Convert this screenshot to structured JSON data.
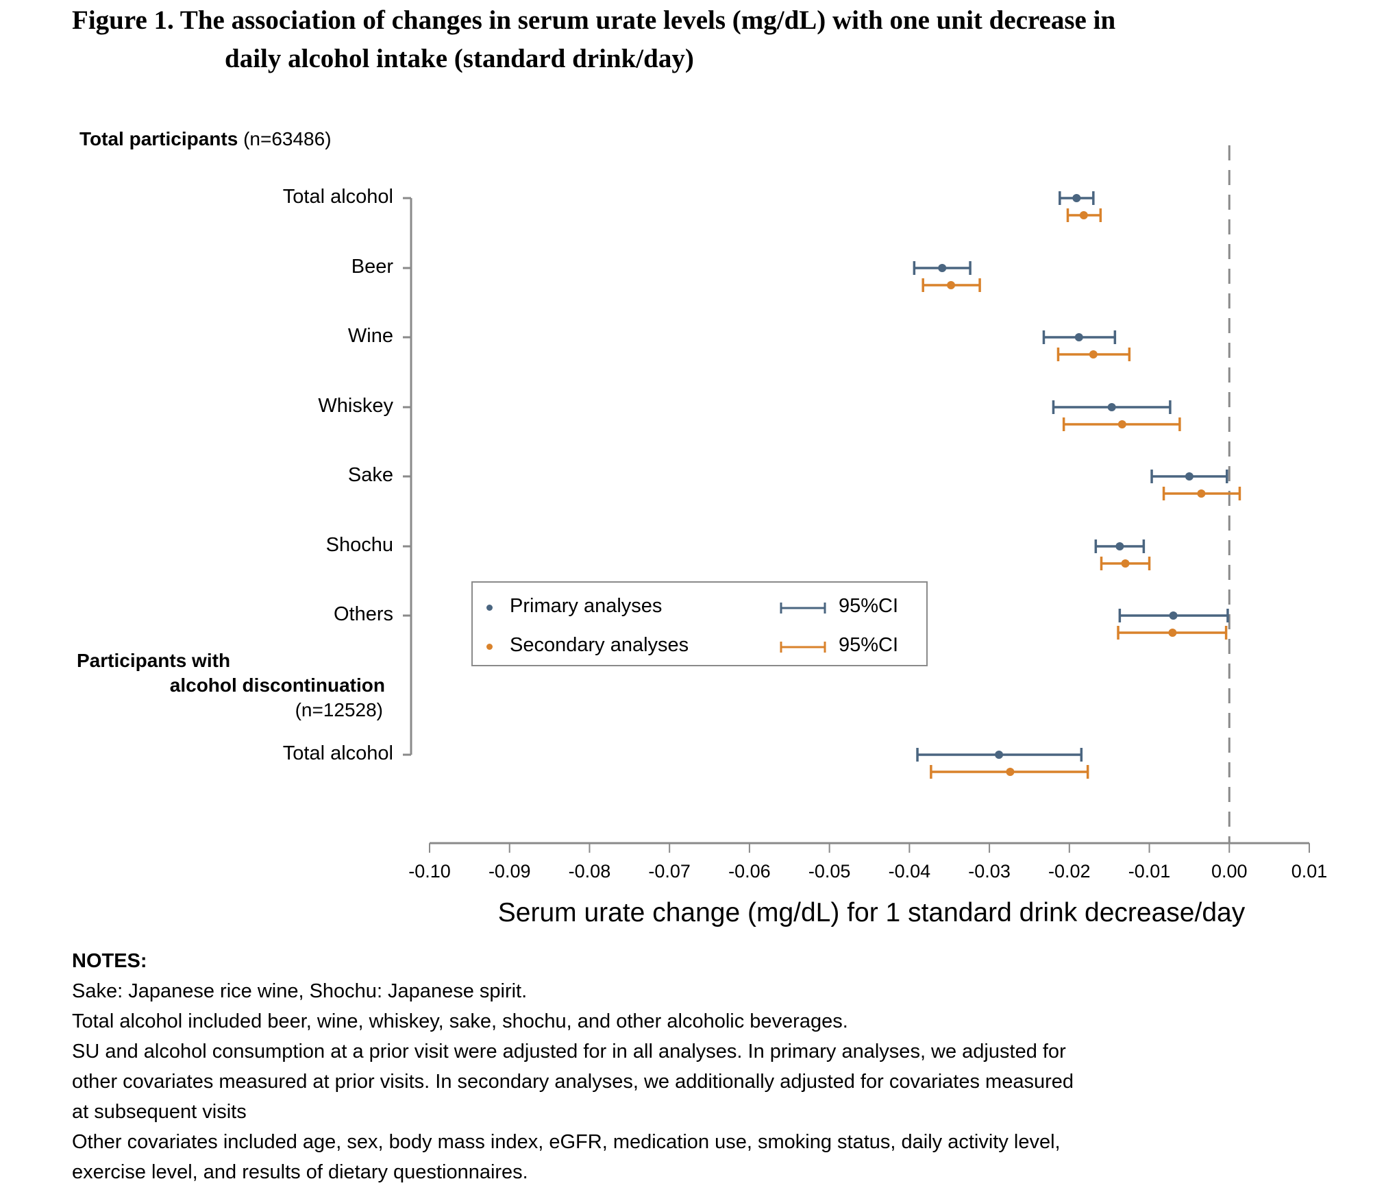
{
  "title": {
    "line1": "Figure 1. The association of changes in serum urate levels (mg/dL) with one unit decrease in",
    "line2": "daily alcohol intake (standard drink/day)"
  },
  "groups": {
    "total": {
      "label": "Total participants",
      "n": "(n=63486)"
    },
    "discontinuation": {
      "label_line1": "Participants with",
      "label_line2": "alcohol discontinuation",
      "n": "(n=12528)"
    }
  },
  "legend": {
    "primary": "Primary analyses",
    "secondary": "Secondary analyses",
    "ci_primary": "95%CI",
    "ci_secondary": "95%CI"
  },
  "colors": {
    "primary": "#4a6580",
    "secondary": "#d9822b",
    "axis": "#8a8a8a"
  },
  "chart_data": {
    "type": "forest",
    "xlabel": "Serum urate change (mg/dL) for 1 standard drink decrease/day",
    "xlim": [
      -0.1,
      0.01
    ],
    "xticks": [
      "-0.10",
      "-0.09",
      "-0.08",
      "-0.07",
      "-0.06",
      "-0.05",
      "-0.04",
      "-0.03",
      "-0.02",
      "-0.01",
      "0.00",
      "0.01"
    ],
    "reference_line": 0.0,
    "rows": [
      {
        "label": "Total alcohol",
        "group": "total",
        "primary": {
          "est": -0.0191,
          "lo": -0.0212,
          "hi": -0.017
        },
        "secondary": {
          "est": -0.0182,
          "lo": -0.0202,
          "hi": -0.0161
        }
      },
      {
        "label": "Beer",
        "group": "total",
        "primary": {
          "est": -0.0359,
          "lo": -0.0394,
          "hi": -0.0324
        },
        "secondary": {
          "est": -0.0348,
          "lo": -0.0383,
          "hi": -0.0312
        }
      },
      {
        "label": "Wine",
        "group": "total",
        "primary": {
          "est": -0.0188,
          "lo": -0.0232,
          "hi": -0.0143
        },
        "secondary": {
          "est": -0.017,
          "lo": -0.0214,
          "hi": -0.0125
        }
      },
      {
        "label": "Whiskey",
        "group": "total",
        "primary": {
          "est": -0.0147,
          "lo": -0.022,
          "hi": -0.0074
        },
        "secondary": {
          "est": -0.0134,
          "lo": -0.0207,
          "hi": -0.0062
        }
      },
      {
        "label": "Sake",
        "group": "total",
        "primary": {
          "est": -0.005,
          "lo": -0.0097,
          "hi": -0.0003
        },
        "secondary": {
          "est": -0.0035,
          "lo": -0.0082,
          "hi": 0.0013
        }
      },
      {
        "label": "Shochu",
        "group": "total",
        "primary": {
          "est": -0.0137,
          "lo": -0.0167,
          "hi": -0.0107
        },
        "secondary": {
          "est": -0.013,
          "lo": -0.016,
          "hi": -0.01
        }
      },
      {
        "label": "Others",
        "group": "total",
        "primary": {
          "est": -0.007,
          "lo": -0.0137,
          "hi": -0.0002
        },
        "secondary": {
          "est": -0.0071,
          "lo": -0.0139,
          "hi": -0.0004
        }
      },
      {
        "label": "Total alcohol",
        "group": "discontinuation",
        "primary": {
          "est": -0.0288,
          "lo": -0.039,
          "hi": -0.0185
        },
        "secondary": {
          "est": -0.0274,
          "lo": -0.0373,
          "hi": -0.0177
        }
      }
    ]
  },
  "notes": {
    "heading": "NOTES:",
    "lines": [
      "Sake: Japanese rice wine, Shochu: Japanese spirit.",
      "Total alcohol included beer, wine, whiskey, sake, shochu, and other alcoholic beverages.",
      "SU and alcohol consumption at a prior visit were adjusted for in all analyses. In primary analyses, we adjusted for",
      "other covariates measured at prior visits. In secondary analyses, we additionally adjusted for covariates measured",
      "at subsequent visits",
      "Other covariates included age, sex, body mass index, eGFR, medication use, smoking status, daily activity level,",
      "exercise level, and results of dietary questionnaires."
    ]
  }
}
